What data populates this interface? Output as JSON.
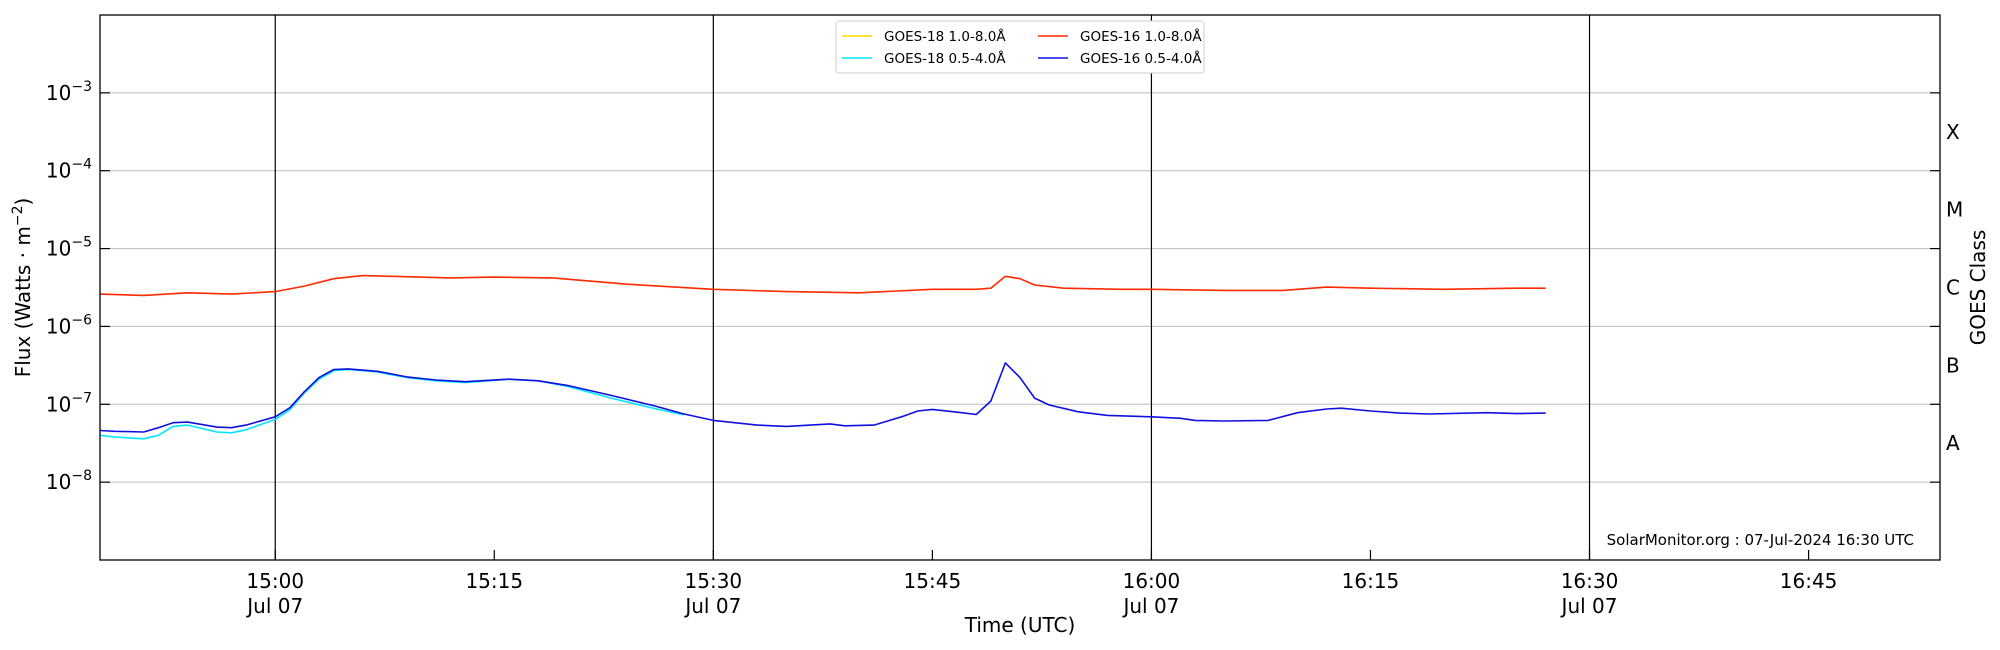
{
  "chart_data": {
    "type": "line",
    "xlabel": "Time (UTC)",
    "ylabel": "Flux (Watts · m",
    "ylabel_sup": "−2",
    "ylabel_close": ")",
    "right_label": "GOES Class",
    "y_scale": "log",
    "ylim": [
      1e-09,
      0.01
    ],
    "xlim": [
      "14:48",
      "16:54"
    ],
    "x_ticks": [
      {
        "time": "15:00",
        "label": "15:00",
        "sub": "Jul 07"
      },
      {
        "time": "15:15",
        "label": "15:15",
        "sub": ""
      },
      {
        "time": "15:30",
        "label": "15:30",
        "sub": "Jul 07"
      },
      {
        "time": "15:45",
        "label": "15:45",
        "sub": ""
      },
      {
        "time": "16:00",
        "label": "16:00",
        "sub": "Jul 07"
      },
      {
        "time": "16:15",
        "label": "16:15",
        "sub": ""
      },
      {
        "time": "16:30",
        "label": "16:30",
        "sub": "Jul 07"
      },
      {
        "time": "16:45",
        "label": "16:45",
        "sub": ""
      }
    ],
    "vertical_lines": [
      "15:00",
      "15:30",
      "16:00",
      "16:30"
    ],
    "y_ticks": [
      {
        "value": 1e-08,
        "base": "10",
        "exp": "−8"
      },
      {
        "value": 1e-07,
        "base": "10",
        "exp": "−7"
      },
      {
        "value": 1e-06,
        "base": "10",
        "exp": "−6"
      },
      {
        "value": 1e-05,
        "base": "10",
        "exp": "−5"
      },
      {
        "value": 0.0001,
        "base": "10",
        "exp": "−4"
      },
      {
        "value": 0.001,
        "base": "10",
        "exp": "−3"
      }
    ],
    "goes_classes": [
      {
        "label": "A",
        "value": 3.16e-08
      },
      {
        "label": "B",
        "value": 3.16e-07
      },
      {
        "label": "C",
        "value": 3.16e-06
      },
      {
        "label": "M",
        "value": 3.16e-05
      },
      {
        "label": "X",
        "value": 0.000316
      }
    ],
    "legend_position": "top-center",
    "grid": true,
    "annotation": "SolarMonitor.org : 07-Jul-2024 16:30 UTC",
    "series": [
      {
        "name": "GOES-18 1.0-8.0Å",
        "color": "#ffd700",
        "points": []
      },
      {
        "name": "GOES-16 1.0-8.0Å",
        "color": "#ff2a00",
        "points": [
          [
            "14:48",
            2.6e-06
          ],
          [
            "14:51",
            2.5e-06
          ],
          [
            "14:54",
            2.7e-06
          ],
          [
            "14:57",
            2.6e-06
          ],
          [
            "15:00",
            2.8e-06
          ],
          [
            "15:02",
            3.3e-06
          ],
          [
            "15:04",
            4.1e-06
          ],
          [
            "15:06",
            4.5e-06
          ],
          [
            "15:08",
            4.4e-06
          ],
          [
            "15:12",
            4.2e-06
          ],
          [
            "15:15",
            4.3e-06
          ],
          [
            "15:19",
            4.2e-06
          ],
          [
            "15:24",
            3.5e-06
          ],
          [
            "15:30",
            3e-06
          ],
          [
            "15:35",
            2.8e-06
          ],
          [
            "15:40",
            2.7e-06
          ],
          [
            "15:45",
            3e-06
          ],
          [
            "15:48",
            3e-06
          ],
          [
            "15:49",
            3.1e-06
          ],
          [
            "15:50",
            4.4e-06
          ],
          [
            "15:51",
            4.1e-06
          ],
          [
            "15:52",
            3.4e-06
          ],
          [
            "15:54",
            3.1e-06
          ],
          [
            "15:58",
            3e-06
          ],
          [
            "16:00",
            3e-06
          ],
          [
            "16:05",
            2.9e-06
          ],
          [
            "16:09",
            2.9e-06
          ],
          [
            "16:12",
            3.2e-06
          ],
          [
            "16:15",
            3.1e-06
          ],
          [
            "16:20",
            3e-06
          ],
          [
            "16:25",
            3.1e-06
          ],
          [
            "16:27",
            3.1e-06
          ]
        ]
      },
      {
        "name": "GOES-18 0.5-4.0Å",
        "color": "#00e5ff",
        "points": [
          [
            "14:48",
            4e-08
          ],
          [
            "14:49",
            3.8e-08
          ],
          [
            "14:51",
            3.6e-08
          ],
          [
            "14:52",
            4e-08
          ],
          [
            "14:53",
            5.2e-08
          ],
          [
            "14:54",
            5.4e-08
          ],
          [
            "14:56",
            4.4e-08
          ],
          [
            "14:57",
            4.3e-08
          ],
          [
            "14:58",
            4.7e-08
          ],
          [
            "15:00",
            6.4e-08
          ],
          [
            "15:01",
            8.5e-08
          ],
          [
            "15:02",
            1.4e-07
          ],
          [
            "15:03",
            2.1e-07
          ],
          [
            "15:04",
            2.7e-07
          ],
          [
            "15:05",
            2.8e-07
          ],
          [
            "15:07",
            2.6e-07
          ],
          [
            "15:09",
            2.2e-07
          ],
          [
            "15:11",
            2e-07
          ],
          [
            "15:13",
            1.9e-07
          ],
          [
            "15:16",
            2.1e-07
          ],
          [
            "15:18",
            2e-07
          ],
          [
            "15:20",
            1.7e-07
          ],
          [
            "15:23",
            1.2e-07
          ],
          [
            "15:26",
            8.8e-08
          ],
          [
            "15:28",
            7.3e-08
          ]
        ]
      },
      {
        "name": "GOES-16 0.5-4.0Å",
        "color": "#1010e0",
        "points": [
          [
            "14:48",
            4.6e-08
          ],
          [
            "14:49",
            4.5e-08
          ],
          [
            "14:51",
            4.4e-08
          ],
          [
            "14:52",
            5e-08
          ],
          [
            "14:53",
            5.8e-08
          ],
          [
            "14:54",
            5.9e-08
          ],
          [
            "14:56",
            5.1e-08
          ],
          [
            "14:57",
            5e-08
          ],
          [
            "14:58",
            5.4e-08
          ],
          [
            "15:00",
            6.9e-08
          ],
          [
            "15:01",
            9e-08
          ],
          [
            "15:02",
            1.45e-07
          ],
          [
            "15:03",
            2.2e-07
          ],
          [
            "15:04",
            2.8e-07
          ],
          [
            "15:05",
            2.85e-07
          ],
          [
            "15:07",
            2.65e-07
          ],
          [
            "15:09",
            2.25e-07
          ],
          [
            "15:11",
            2.05e-07
          ],
          [
            "15:13",
            1.95e-07
          ],
          [
            "15:16",
            2.1e-07
          ],
          [
            "15:18",
            2e-07
          ],
          [
            "15:20",
            1.75e-07
          ],
          [
            "15:23",
            1.3e-07
          ],
          [
            "15:26",
            9.5e-08
          ],
          [
            "15:28",
            7.5e-08
          ],
          [
            "15:30",
            6.2e-08
          ],
          [
            "15:33",
            5.4e-08
          ],
          [
            "15:35",
            5.2e-08
          ],
          [
            "15:38",
            5.6e-08
          ],
          [
            "15:39",
            5.3e-08
          ],
          [
            "15:41",
            5.4e-08
          ],
          [
            "15:43",
            7e-08
          ],
          [
            "15:44",
            8.2e-08
          ],
          [
            "15:45",
            8.6e-08
          ],
          [
            "15:47",
            7.8e-08
          ],
          [
            "15:48",
            7.4e-08
          ],
          [
            "15:49",
            1.1e-07
          ],
          [
            "15:50",
            3.4e-07
          ],
          [
            "15:51",
            2.2e-07
          ],
          [
            "15:52",
            1.2e-07
          ],
          [
            "15:53",
            9.8e-08
          ],
          [
            "15:55",
            8e-08
          ],
          [
            "15:57",
            7.2e-08
          ],
          [
            "16:00",
            6.9e-08
          ],
          [
            "16:02",
            6.6e-08
          ],
          [
            "16:03",
            6.2e-08
          ],
          [
            "16:05",
            6.1e-08
          ],
          [
            "16:08",
            6.2e-08
          ],
          [
            "16:10",
            7.8e-08
          ],
          [
            "16:12",
            8.7e-08
          ],
          [
            "16:13",
            8.9e-08
          ],
          [
            "16:15",
            8.2e-08
          ],
          [
            "16:17",
            7.7e-08
          ],
          [
            "16:19",
            7.5e-08
          ],
          [
            "16:23",
            7.8e-08
          ],
          [
            "16:25",
            7.6e-08
          ],
          [
            "16:27",
            7.7e-08
          ]
        ]
      }
    ]
  }
}
